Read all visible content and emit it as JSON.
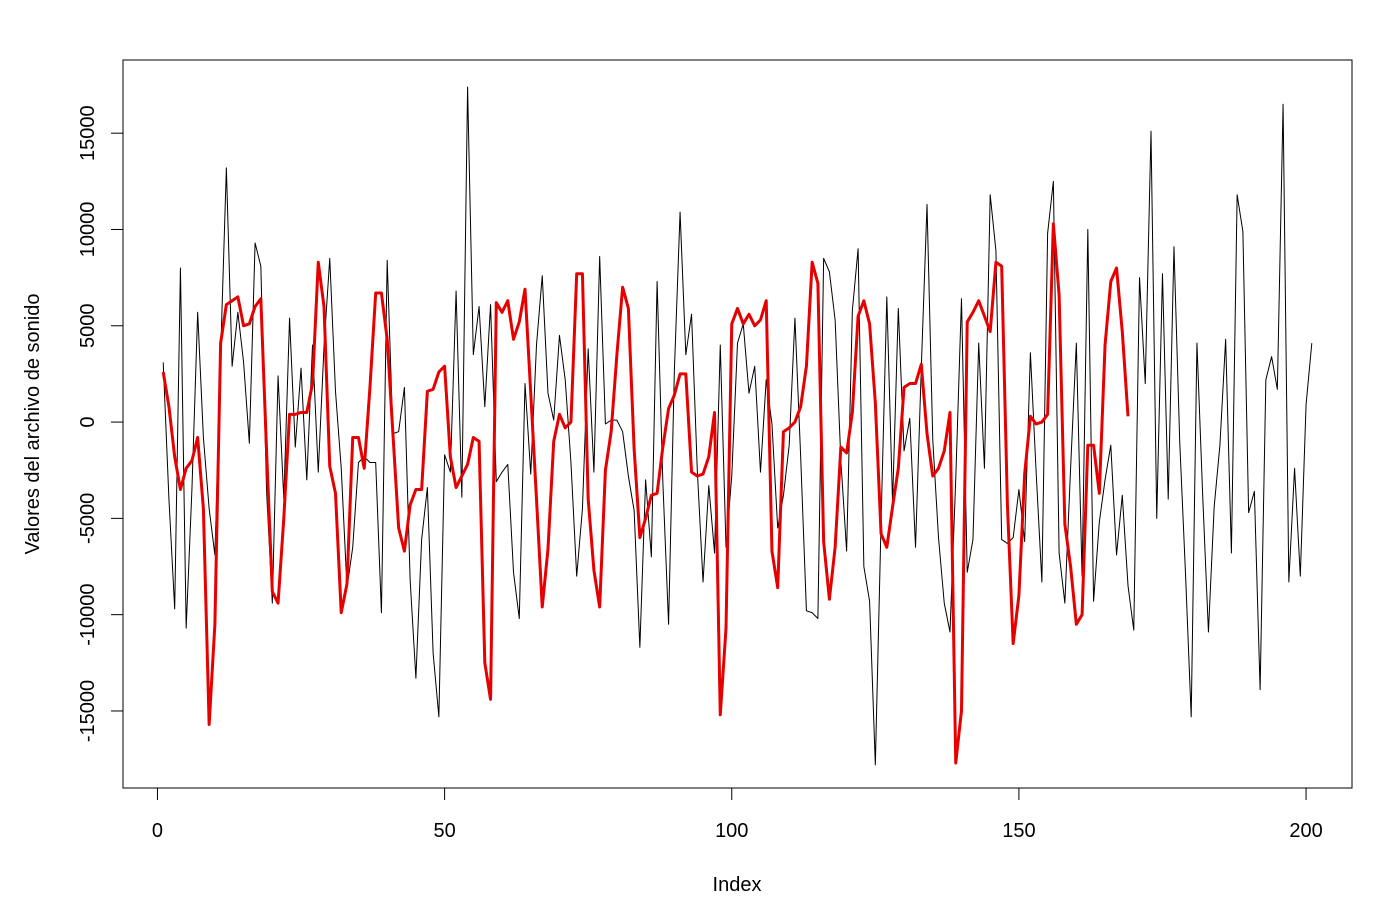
{
  "chart_data": {
    "type": "line",
    "title": "",
    "xlabel": "Index",
    "ylabel": "Valores del archivo de sonido",
    "xlim": [
      -6,
      208
    ],
    "ylim": [
      -19000,
      18800
    ],
    "x_ticks": [
      0,
      50,
      100,
      150,
      200
    ],
    "y_ticks": [
      -15000,
      -10000,
      -5000,
      0,
      5000,
      10000,
      15000
    ],
    "grid": false,
    "legend": "none",
    "series": [
      {
        "color": "#000000",
        "line_width": 1,
        "x_start": 1,
        "values": [
          3100,
          -4000,
          -9700,
          8000,
          -10700,
          -3500,
          5700,
          -800,
          -4500,
          -6900,
          3500,
          13200,
          2900,
          5700,
          3100,
          -1100,
          9300,
          8100,
          -3600,
          -9400,
          2400,
          -4000,
          5400,
          -1300,
          2800,
          -3000,
          4000,
          -2600,
          3900,
          8500,
          1600,
          -2400,
          -8600,
          -6500,
          -2100,
          -1800,
          -2100,
          -2100,
          -9900,
          8400,
          -600,
          -500,
          1800,
          -8200,
          -13300,
          -6100,
          -3400,
          -12000,
          -15300,
          -1700,
          -2600,
          6800,
          -3900,
          17400,
          3500,
          6000,
          800,
          6100,
          -3100,
          -2600,
          -2200,
          -7800,
          -10200,
          2000,
          -2700,
          4000,
          7600,
          1500,
          100,
          4500,
          2200,
          -2100,
          -8000,
          -4500,
          3800,
          -2600,
          8600,
          -100,
          100,
          100,
          -500,
          -2800,
          -4600,
          -11700,
          -3000,
          -7000,
          7300,
          -3100,
          -10500,
          2600,
          10900,
          3500,
          5600,
          -2500,
          -8300,
          -3300,
          -6800,
          4000,
          -6500,
          -2800,
          4100,
          5100,
          1500,
          2900,
          -2600,
          2200,
          -100,
          -5500,
          -3800,
          -1200,
          5400,
          -1800,
          -9800,
          -9900,
          -10200,
          8500,
          7800,
          5300,
          -2000,
          -6700,
          5800,
          9000,
          -7500,
          -9300,
          -17800,
          -5200,
          6500,
          -4200,
          5900,
          -1500,
          200,
          -6500,
          2800,
          11300,
          -900,
          -6000,
          -9400,
          -10900,
          -3000,
          6400,
          -7800,
          -6100,
          4100,
          -2400,
          11800,
          8900,
          -6100,
          -6300,
          -6000,
          -3500,
          -6200,
          3600,
          -2600,
          -8300,
          9800,
          12500,
          -6800,
          -9400,
          -2400,
          4100,
          -8000,
          10000,
          -9300,
          -5200,
          -3000,
          -1200,
          -6900,
          -3800,
          -8500,
          -10800,
          7500,
          2000,
          15100,
          -5000,
          7700,
          -4000,
          9100,
          -1000,
          -7800,
          -15300,
          4100,
          -3800,
          -10900,
          -4400,
          -1200,
          4300,
          -6800,
          11800,
          9900,
          -4700,
          -3600,
          -13900,
          2200,
          3400,
          1700,
          16500,
          -8300,
          -2400,
          -8000,
          900,
          4100
        ]
      },
      {
        "color": "#e60000",
        "line_width": 3,
        "x_start": 1,
        "values": [
          2600,
          800,
          -1800,
          -3500,
          -2400,
          -2000,
          -800,
          -4500,
          -15700,
          -10500,
          4100,
          6100,
          6300,
          6500,
          5000,
          5100,
          6000,
          6400,
          -1500,
          -8800,
          -9400,
          -5000,
          400,
          400,
          500,
          500,
          2000,
          8300,
          6000,
          -2300,
          -3700,
          -9900,
          -8400,
          -800,
          -800,
          -2400,
          1800,
          6700,
          6700,
          4300,
          -600,
          -5500,
          -6700,
          -4300,
          -3500,
          -3500,
          1600,
          1700,
          2600,
          2900,
          -1800,
          -3400,
          -2800,
          -2200,
          -800,
          -1000,
          -12500,
          -14400,
          6200,
          5700,
          6300,
          4300,
          5200,
          6900,
          1500,
          -4000,
          -9600,
          -6600,
          -1000,
          400,
          -300,
          0,
          7700,
          7700,
          -4000,
          -7700,
          -9600,
          -2500,
          -500,
          3500,
          7000,
          5900,
          -1400,
          -6000,
          -5000,
          -3800,
          -3700,
          -1300,
          700,
          1400,
          2500,
          2500,
          -2600,
          -2800,
          -2700,
          -1800,
          500,
          -15200,
          -10700,
          5100,
          5900,
          5100,
          5600,
          5000,
          5300,
          6300,
          -6700,
          -8600,
          -500,
          -300,
          0,
          800,
          2900,
          8300,
          7200,
          -6200,
          -9200,
          -6500,
          -1300,
          -1600,
          500,
          5500,
          6300,
          5100,
          1000,
          -5800,
          -6500,
          -4400,
          -2400,
          1800,
          2000,
          2000,
          3000,
          -600,
          -2800,
          -2400,
          -1500,
          500,
          -17700,
          -15000,
          5200,
          5700,
          6300,
          5500,
          4700,
          8300,
          8100,
          -4300,
          -11500,
          -9000,
          -2700,
          300,
          -100,
          0,
          400,
          10300,
          6600,
          -5300,
          -7500,
          -10500,
          -10000,
          -1200,
          -1200,
          -3700,
          4000,
          7300,
          8000,
          4700,
          300
        ]
      }
    ]
  }
}
